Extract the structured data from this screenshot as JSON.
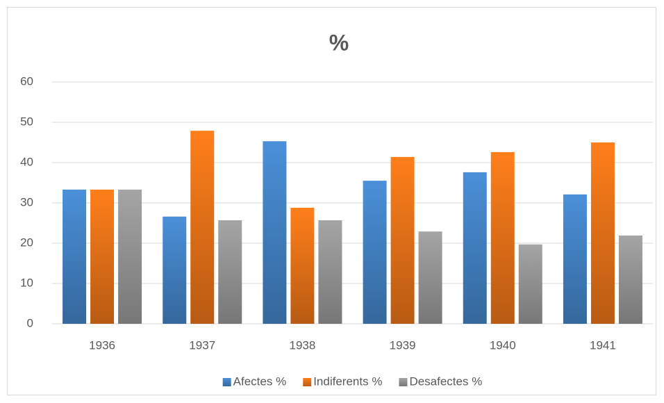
{
  "chart_data": {
    "type": "bar",
    "title": "%",
    "categories": [
      "1936",
      "1937",
      "1938",
      "1939",
      "1940",
      "1941"
    ],
    "series": [
      {
        "name": "Afectes %",
        "color": "#4a90d9",
        "values": [
          33.3,
          26.6,
          45.3,
          35.5,
          37.6,
          32.1
        ]
      },
      {
        "name": "Indiferents %",
        "color": "#ff7f1a",
        "values": [
          33.3,
          47.9,
          28.8,
          41.4,
          42.6,
          45.0
        ]
      },
      {
        "name": "Desafectes %",
        "color": "#a5a5a5",
        "values": [
          33.3,
          25.7,
          25.7,
          22.9,
          19.7,
          21.9
        ]
      }
    ],
    "ylim": [
      0,
      60
    ],
    "yticks": [
      0,
      10,
      20,
      30,
      40,
      50,
      60
    ],
    "grid": true,
    "legend": "bottom"
  }
}
